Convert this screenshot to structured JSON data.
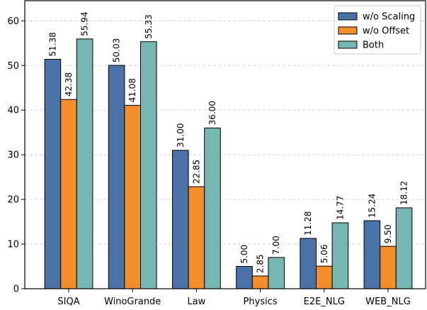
{
  "chart_data": {
    "type": "bar",
    "categories": [
      "SIQA",
      "WinoGrande",
      "Law",
      "Physics",
      "E2E_NLG",
      "WEB_NLG"
    ],
    "series": [
      {
        "name": "w/o Scaling",
        "values": [
          51.38,
          50.03,
          31.0,
          5.0,
          11.28,
          15.24
        ],
        "labels": [
          "51.38",
          "50.03",
          "31.00",
          "5.00",
          "11.28",
          "15.24"
        ],
        "color": "#4a72a6"
      },
      {
        "name": "w/o Offset",
        "values": [
          42.38,
          41.08,
          22.85,
          2.85,
          5.06,
          9.5
        ],
        "labels": [
          "42.38",
          "41.08",
          "22.85",
          "2.85",
          "5.06",
          "9.50"
        ],
        "color": "#f28e2b"
      },
      {
        "name": "Both",
        "values": [
          55.94,
          55.33,
          36.0,
          7.0,
          14.77,
          18.12
        ],
        "labels": [
          "55.94",
          "55.33",
          "36.00",
          "7.00",
          "14.77",
          "18.12"
        ],
        "color": "#76b7b2"
      }
    ],
    "ylim": [
      0,
      64.5
    ],
    "yticks": [
      0,
      10,
      20,
      30,
      40,
      50,
      60
    ],
    "grid": true,
    "legend": "top-right"
  }
}
